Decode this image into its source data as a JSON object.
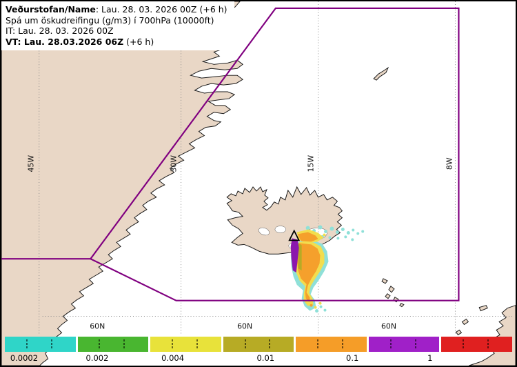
{
  "header": {
    "line1_label": "Veðurstofan/Name",
    "line1_rest": ": Lau. 28. 03. 2026 00Z (+6 h)",
    "line2": "Spá um öskudreifingu (g/m3) í 700hPa (10000ft)",
    "line3": "IT: Lau. 28. 03. 2026 00Z",
    "line4_bold": "VT: Lau. 28.03.2026 06Z",
    "line4_rest": " (+6 h)"
  },
  "map": {
    "meridians": [
      {
        "text": "45W"
      },
      {
        "text": "30W"
      },
      {
        "text": "15W"
      },
      {
        "text": "8W"
      }
    ],
    "parallels": [
      {
        "text": "60N"
      },
      {
        "text": "60N"
      },
      {
        "text": "60N"
      }
    ],
    "colors": {
      "land": "#e9d7c6",
      "ocean": "#ffffff",
      "coastline": "#1a1a1a",
      "fir_boundary": "#800080",
      "volcano_marker": "#000000"
    },
    "plume_colors": {
      "trace": "#8fe0d8",
      "low": "#f2dd4e",
      "medium": "#f5a02c",
      "olive": "#b7ab25",
      "high": "#8b17ad"
    }
  },
  "legend": {
    "segments": [
      {
        "color": "#2fd5c8"
      },
      {
        "color": "#49b630"
      },
      {
        "color": "#e8e23a"
      },
      {
        "color": "#b7ab25"
      },
      {
        "color": "#f59d28"
      },
      {
        "color": "#a020c8"
      },
      {
        "color": "#e02020"
      }
    ],
    "tick_labels": [
      {
        "text": "0.0002",
        "x_pct": 3.8
      },
      {
        "text": "0.002",
        "x_pct": 18.2
      },
      {
        "text": "0.004",
        "x_pct": 33.1
      },
      {
        "text": "0.01",
        "x_pct": 51.4
      },
      {
        "text": "0.1",
        "x_pct": 68.5
      },
      {
        "text": "1",
        "x_pct": 83.8
      }
    ]
  }
}
